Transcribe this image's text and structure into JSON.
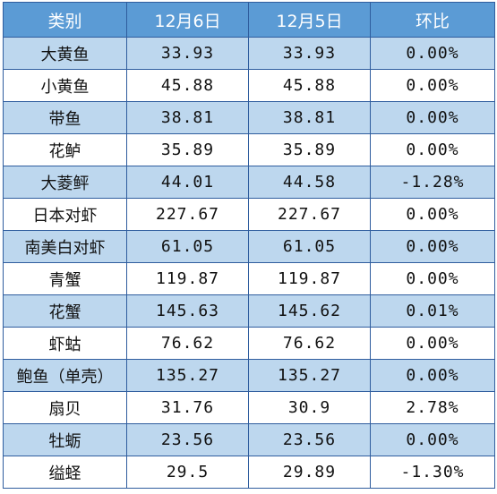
{
  "table": {
    "headers": [
      "类别",
      "12月6日",
      "12月5日",
      "环比"
    ],
    "rows": [
      {
        "category": "大黄鱼",
        "dec6": "33.93",
        "dec5": "33.93",
        "change": "0.00%"
      },
      {
        "category": "小黄鱼",
        "dec6": "45.88",
        "dec5": "45.88",
        "change": "0.00%"
      },
      {
        "category": "带鱼",
        "dec6": "38.81",
        "dec5": "38.81",
        "change": "0.00%"
      },
      {
        "category": "花鲈",
        "dec6": "35.89",
        "dec5": "35.89",
        "change": "0.00%"
      },
      {
        "category": "大菱鲆",
        "dec6": "44.01",
        "dec5": "44.58",
        "change": "-1.28%"
      },
      {
        "category": "日本对虾",
        "dec6": "227.67",
        "dec5": "227.67",
        "change": "0.00%"
      },
      {
        "category": "南美白对虾",
        "dec6": "61.05",
        "dec5": "61.05",
        "change": "0.00%"
      },
      {
        "category": "青蟹",
        "dec6": "119.87",
        "dec5": "119.87",
        "change": "0.00%"
      },
      {
        "category": "花蟹",
        "dec6": "145.63",
        "dec5": "145.62",
        "change": "0.01%"
      },
      {
        "category": "虾蛄",
        "dec6": "76.62",
        "dec5": "76.62",
        "change": "0.00%"
      },
      {
        "category": "鲍鱼（单壳）",
        "dec6": "135.27",
        "dec5": "135.27",
        "change": "0.00%"
      },
      {
        "category": "扇贝",
        "dec6": "31.76",
        "dec5": "30.9",
        "change": "2.78%"
      },
      {
        "category": "牡蛎",
        "dec6": "23.56",
        "dec5": "23.56",
        "change": "0.00%"
      },
      {
        "category": "缢蛏",
        "dec6": "29.5",
        "dec5": "29.89",
        "change": "-1.30%"
      }
    ]
  },
  "colors": {
    "header_bg": "#5b9bd5",
    "header_text": "#ffffff",
    "stripe_bg": "#bdd7ee",
    "plain_bg": "#ffffff",
    "border": "#2f5d9e"
  }
}
